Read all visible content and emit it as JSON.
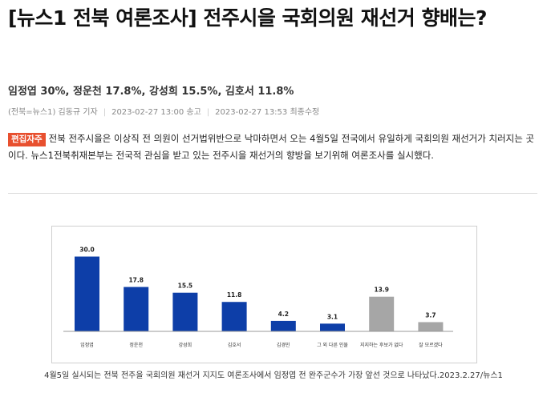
{
  "article": {
    "headline": "[뉴스1 전북 여론조사] 전주시을 국회의원 재선거 향배는?",
    "subhead": "임정엽 30%, 정운천 17.8%, 강성희 15.5%, 김호서 11.8%",
    "byline": {
      "source": "(전북=뉴스1) 김동규 기자",
      "published": "2023-02-27 13:00 송고",
      "updated": "2023-02-27 13:53 최종수정"
    },
    "lead_badge": "편집자주",
    "lead_text": "전북 전주시을은 이상직 전 의원이 선거법위반으로 낙마하면서 오는 4월5일 전국에서 유일하게 국회의원 재선거가 치러지는 곳이다. 뉴스1전북취재본부는 전국적 관심을 받고 있는 전주시을 재선거의 향방을 보기위해 여론조사를 실시했다.",
    "caption": "4월5일 실시되는 전북 전주을 국회의원 재선거 지지도 여론조사에서 임정엽 전 완주군수가 가장 앞선 것으로 나타났다.2023.2.27/뉴스1"
  },
  "chart_data": {
    "type": "bar",
    "categories": [
      "임정엽",
      "정운천",
      "강성희",
      "김호서",
      "김경민",
      "그 외 다른 인물",
      "지지하는 후보가 없다",
      "잘 모르겠다"
    ],
    "values": [
      30.0,
      17.8,
      15.5,
      11.8,
      4.2,
      3.1,
      13.9,
      3.7
    ],
    "value_labels": [
      "30.0",
      "17.8",
      "15.5",
      "11.8",
      "4.2",
      "3.1",
      "13.9",
      "3.7"
    ],
    "colors": [
      "#0d3ea8",
      "#0d3ea8",
      "#0d3ea8",
      "#0d3ea8",
      "#0d3ea8",
      "#0d3ea8",
      "#a6a6a6",
      "#a6a6a6"
    ],
    "ylim": [
      0,
      35
    ],
    "grid": false,
    "title": "",
    "xlabel": "",
    "ylabel": ""
  }
}
